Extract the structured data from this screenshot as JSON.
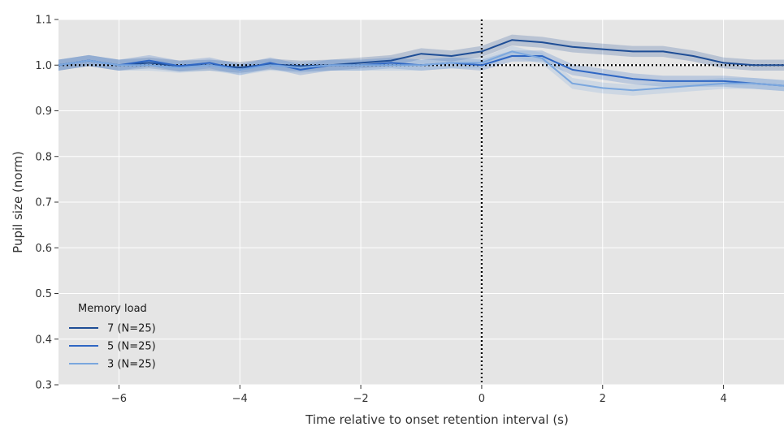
{
  "chart_data": {
    "type": "line",
    "title": "",
    "xlabel": "Time relative to onset retention interval (s)",
    "ylabel": "Pupil size (norm)",
    "xlim": [
      -7,
      5
    ],
    "ylim": [
      0.3,
      1.1
    ],
    "x_ticks": [
      -6,
      -4,
      -2,
      0,
      2,
      4
    ],
    "x_tick_labels": [
      "−6",
      "−4",
      "−2",
      "0",
      "2",
      "4"
    ],
    "y_ticks": [
      0.3,
      0.4,
      0.5,
      0.6,
      0.7,
      0.8,
      0.9,
      1.0,
      1.1
    ],
    "y_tick_labels": [
      "0.3",
      "0.4",
      "0.5",
      "0.6",
      "0.7",
      "0.8",
      "0.9",
      "1.0",
      "1.1"
    ],
    "grid": true,
    "background": "#e5e5e5",
    "reference_lines": [
      {
        "orientation": "horizontal",
        "value": 1.0,
        "style": "dotted",
        "color": "#000000"
      },
      {
        "orientation": "vertical",
        "value": 0,
        "style": "dotted",
        "color": "#000000"
      }
    ],
    "legend": {
      "title": "Memory load",
      "placement": "bottom-left"
    },
    "x": [
      -7,
      -6.5,
      -6,
      -5.5,
      -5,
      -4.5,
      -4,
      -3.5,
      -3,
      -2.5,
      -2,
      -1.5,
      -1,
      -0.5,
      0,
      0.5,
      1,
      1.5,
      2,
      2.5,
      3,
      3.5,
      4,
      4.5,
      5
    ],
    "series": [
      {
        "name": "7 (N=25)",
        "color": "#1f4e96",
        "band": 0.012,
        "values": [
          1.0,
          1.01,
          1.0,
          1.005,
          0.998,
          1.0,
          0.995,
          1.002,
          0.998,
          1.0,
          1.005,
          1.01,
          1.025,
          1.02,
          1.03,
          1.055,
          1.05,
          1.04,
          1.035,
          1.03,
          1.03,
          1.02,
          1.005,
          1.0,
          1.0
        ]
      },
      {
        "name": "5 (N=25)",
        "color": "#2f67c4",
        "band": 0.012,
        "values": [
          1.0,
          1.01,
          1.0,
          1.01,
          0.998,
          1.005,
          0.99,
          1.005,
          0.99,
          1.0,
          1.0,
          1.005,
          1.0,
          1.005,
          1.0,
          1.02,
          1.02,
          0.99,
          0.98,
          0.97,
          0.965,
          0.965,
          0.965,
          0.96,
          0.955
        ]
      },
      {
        "name": "3 (N=25)",
        "color": "#7ba7de",
        "band": 0.012,
        "values": [
          1.0,
          1.01,
          1.0,
          1.0,
          0.995,
          1.0,
          0.99,
          1.0,
          0.995,
          1.0,
          1.0,
          1.0,
          1.0,
          1.005,
          1.005,
          1.03,
          1.015,
          0.96,
          0.95,
          0.945,
          0.95,
          0.955,
          0.96,
          0.96,
          0.955
        ]
      }
    ]
  }
}
